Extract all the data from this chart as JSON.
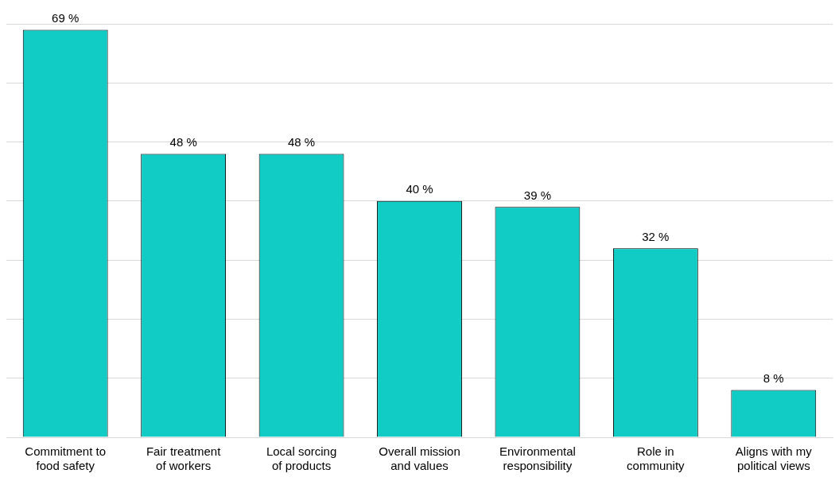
{
  "chart_data": {
    "type": "bar",
    "categories": [
      "Commitment to food safety",
      "Fair treatment of workers",
      "Local sorcing of products",
      "Overall mission and values",
      "Environmental responsibility",
      "Role in community",
      "Aligns with my political views"
    ],
    "values": [
      69,
      48,
      48,
      40,
      39,
      32,
      8
    ],
    "value_labels": [
      "69 %",
      "48 %",
      "48 %",
      "40 %",
      "39 %",
      "32 %",
      "8 %"
    ],
    "color": "#11cbc5",
    "ylim": [
      0,
      70
    ],
    "yticks": [
      {
        "value": 0,
        "label": null
      },
      {
        "value": 10,
        "label": null
      },
      {
        "value": 20,
        "label": null
      },
      {
        "value": 30,
        "label": null
      },
      {
        "value": 40,
        "label": null
      },
      {
        "value": 50,
        "label": null
      },
      {
        "value": 60,
        "label": null
      },
      {
        "value": 70,
        "label": null
      }
    ],
    "grid": "y",
    "tick_labels": "x"
  }
}
